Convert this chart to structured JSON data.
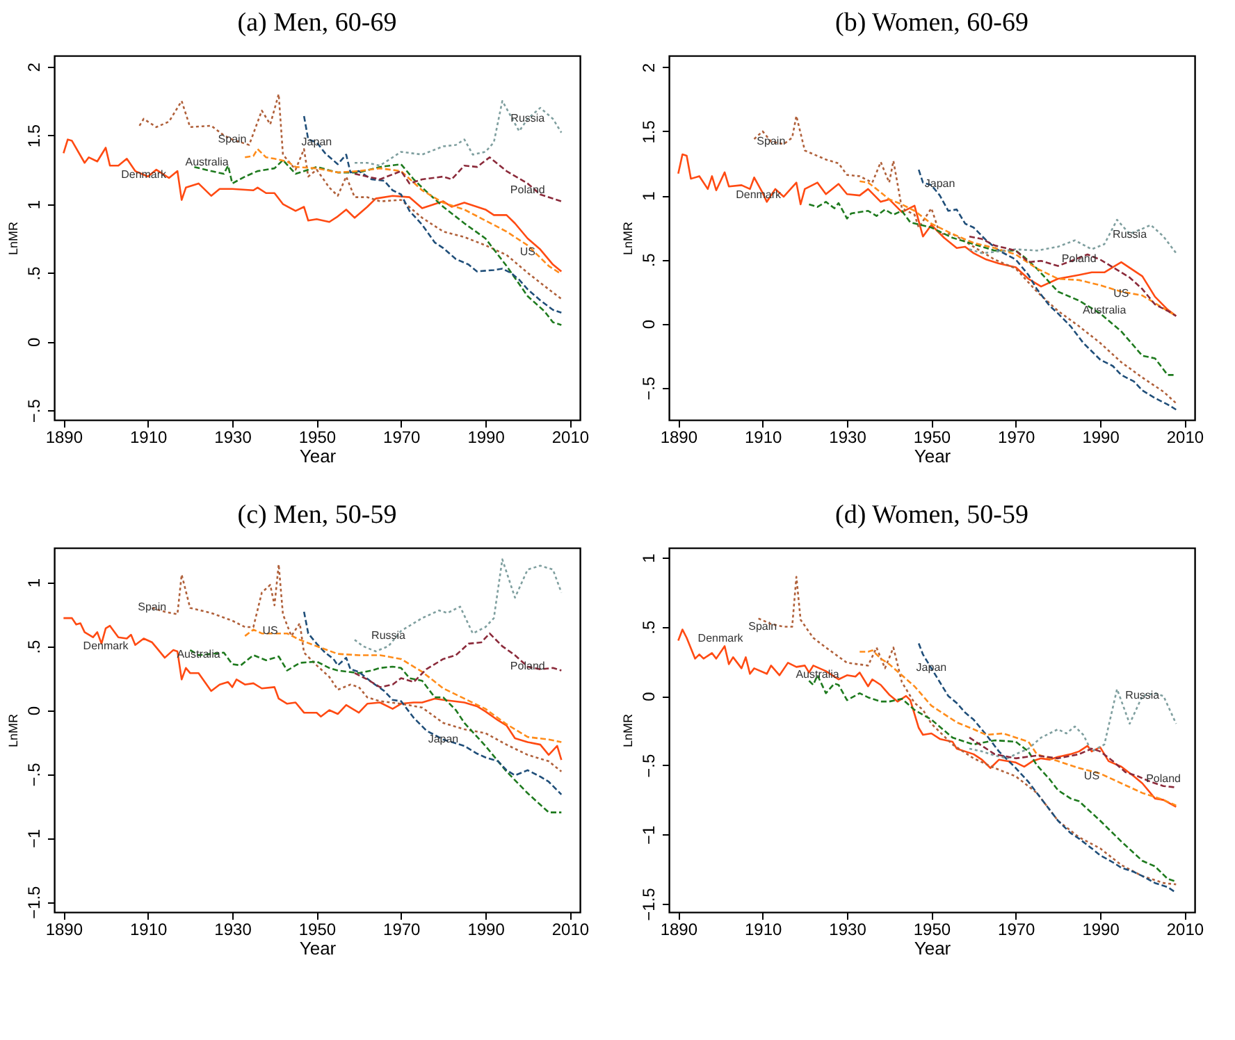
{
  "chart_data": [
    {
      "type": "line",
      "title": "(a) Men, 60-69",
      "xlabel": "Year",
      "ylabel": "LnMR",
      "xlim": [
        1887.8,
        2012.4
      ],
      "ylim": [
        -0.57,
        2.08
      ],
      "xticks": [
        1890,
        1910,
        1930,
        1950,
        1970,
        1990,
        2010
      ],
      "yticks": [
        {
          "value": -0.5,
          "label": "−.5"
        },
        0,
        {
          "value": 0.5,
          "label": ".5"
        },
        1,
        {
          "value": 1.5,
          "label": "1.5"
        },
        2
      ],
      "series": [
        {
          "color": "#ff4a12",
          "line_style": "solid",
          "x": [
            1890,
            1891,
            1892,
            1895,
            1896,
            1898,
            1900,
            1901,
            1903,
            1905,
            1907,
            1910,
            1912,
            1915,
            1917,
            1918,
            1919,
            1922,
            1925,
            1927,
            1930,
            1935,
            1936,
            1938,
            1940,
            1942,
            1945,
            1947,
            1948,
            1950,
            1953,
            1955,
            1957,
            1959,
            1962,
            1964,
            1968,
            1972,
            1975,
            1978,
            1980,
            1982,
            1985,
            1988,
            1990,
            1992,
            1995,
            1997,
            2000,
            2003,
            2006,
            2008
          ],
          "values": [
            1.37,
            1.47,
            1.46,
            1.3,
            1.34,
            1.31,
            1.41,
            1.28,
            1.28,
            1.33,
            1.24,
            1.2,
            1.25,
            1.19,
            1.24,
            1.03,
            1.12,
            1.15,
            1.06,
            1.11,
            1.11,
            1.1,
            1.12,
            1.08,
            1.08,
            1.0,
            0.95,
            0.98,
            0.88,
            0.89,
            0.87,
            0.91,
            0.96,
            0.9,
            0.98,
            1.04,
            1.06,
            1.05,
            0.97,
            1.0,
            1.02,
            0.98,
            1.01,
            0.98,
            0.96,
            0.92,
            0.92,
            0.86,
            0.75,
            0.67,
            0.56,
            0.51
          ]
        },
        {
          "color": "#b0603a",
          "line_style": "dotted",
          "x": [
            1908,
            1909,
            1912,
            1915,
            1918,
            1920,
            1925,
            1928,
            1930,
            1934,
            1937,
            1939,
            1941,
            1942,
            1945,
            1947,
            1948,
            1950,
            1953,
            1955,
            1957,
            1959,
            1962,
            1965,
            1970,
            1975,
            1980,
            1985,
            1990,
            1995,
            2000,
            2005,
            2008
          ],
          "values": [
            1.57,
            1.62,
            1.56,
            1.6,
            1.75,
            1.56,
            1.57,
            1.5,
            1.47,
            1.43,
            1.68,
            1.58,
            1.8,
            1.36,
            1.25,
            1.4,
            1.2,
            1.25,
            1.12,
            1.06,
            1.2,
            1.05,
            1.05,
            1.02,
            1.03,
            0.9,
            0.8,
            0.76,
            0.7,
            0.63,
            0.5,
            0.38,
            0.31
          ]
        },
        {
          "color": "#1e7a1e",
          "line_style": "dashed",
          "x": [
            1921,
            1925,
            1928,
            1929,
            1930,
            1933,
            1936,
            1940,
            1942,
            1945,
            1950,
            1955,
            1960,
            1965,
            1970,
            1973,
            1975,
            1980,
            1985,
            1990,
            1995,
            2000,
            2004,
            2006,
            2008
          ],
          "values": [
            1.27,
            1.24,
            1.22,
            1.28,
            1.15,
            1.2,
            1.24,
            1.26,
            1.32,
            1.22,
            1.27,
            1.23,
            1.23,
            1.27,
            1.29,
            1.18,
            1.12,
            0.98,
            0.86,
            0.75,
            0.55,
            0.33,
            0.22,
            0.14,
            0.12
          ]
        },
        {
          "color": "#1f4e79",
          "line_style": "dashed",
          "x": [
            1947,
            1948,
            1950,
            1952,
            1955,
            1957,
            1958,
            1960,
            1963,
            1966,
            1968,
            1970,
            1972,
            1975,
            1978,
            1980,
            1983,
            1986,
            1988,
            1992,
            1994,
            1996,
            1998,
            2000,
            2003,
            2006,
            2008
          ],
          "values": [
            1.64,
            1.47,
            1.45,
            1.37,
            1.29,
            1.36,
            1.23,
            1.24,
            1.18,
            1.17,
            1.1,
            1.07,
            0.95,
            0.85,
            0.72,
            0.68,
            0.6,
            0.56,
            0.51,
            0.52,
            0.53,
            0.5,
            0.45,
            0.38,
            0.3,
            0.23,
            0.21
          ]
        },
        {
          "color": "#ff8c1a",
          "line_style": "dashed",
          "x": [
            1933,
            1935,
            1936,
            1938,
            1940,
            1943,
            1945,
            1950,
            1955,
            1960,
            1965,
            1970,
            1975,
            1980,
            1985,
            1990,
            1995,
            2000,
            2005,
            2008
          ],
          "values": [
            1.34,
            1.35,
            1.4,
            1.34,
            1.33,
            1.31,
            1.27,
            1.26,
            1.23,
            1.24,
            1.26,
            1.24,
            1.1,
            1.01,
            0.96,
            0.88,
            0.8,
            0.7,
            0.55,
            0.49
          ]
        },
        {
          "color": "#7f9f9f",
          "line_style": "dotted",
          "x": [
            1959,
            1962,
            1965,
            1970,
            1975,
            1980,
            1983,
            1985,
            1987,
            1990,
            1992,
            1994,
            1998,
            2000,
            2003,
            2006,
            2008
          ],
          "values": [
            1.3,
            1.3,
            1.28,
            1.38,
            1.36,
            1.42,
            1.43,
            1.47,
            1.36,
            1.38,
            1.45,
            1.75,
            1.53,
            1.62,
            1.7,
            1.62,
            1.52
          ]
        },
        {
          "color": "#8b2a3a",
          "line_style": "dashed",
          "x": [
            1959,
            1962,
            1965,
            1970,
            1972,
            1975,
            1980,
            1982,
            1985,
            1988,
            1991,
            1995,
            2000,
            2003,
            2008
          ],
          "values": [
            1.22,
            1.2,
            1.18,
            1.24,
            1.15,
            1.18,
            1.2,
            1.18,
            1.28,
            1.27,
            1.34,
            1.24,
            1.15,
            1.07,
            1.02
          ]
        }
      ],
      "annotations": [
        {
          "text": "Spain",
          "x": 1930,
          "y": 1.47
        },
        {
          "text": "Japan",
          "x": 1950,
          "y": 1.45
        },
        {
          "text": "Russia",
          "x": 2000,
          "y": 1.62
        },
        {
          "text": "Australia",
          "x": 1924,
          "y": 1.3
        },
        {
          "text": "Denmark",
          "x": 1909,
          "y": 1.21
        },
        {
          "text": "Poland",
          "x": 2000,
          "y": 1.1
        },
        {
          "text": "US",
          "x": 2000,
          "y": 0.65
        }
      ]
    },
    {
      "type": "line",
      "title": "(b) Women, 60-69",
      "xlabel": "Year",
      "ylabel": "LnMR",
      "xlim": [
        1887.8,
        2012.4
      ],
      "ylim": [
        -0.75,
        2.09
      ],
      "xticks": [
        1890,
        1910,
        1930,
        1950,
        1970,
        1990,
        2010
      ],
      "yticks": [
        {
          "value": -0.5,
          "label": "−.5"
        },
        0,
        {
          "value": 0.5,
          "label": ".5"
        },
        1,
        {
          "value": 1.5,
          "label": "1.5"
        },
        2
      ],
      "series": [
        {
          "color": "#ff4a12",
          "line_style": "solid",
          "x": [
            1890,
            1891,
            1892,
            1893,
            1895,
            1897,
            1898,
            1899,
            1901,
            1902,
            1905,
            1907,
            1908,
            1910,
            1911,
            1913,
            1915,
            1918,
            1919,
            1920,
            1923,
            1925,
            1928,
            1930,
            1933,
            1935,
            1938,
            1940,
            1943,
            1946,
            1948,
            1950,
            1953,
            1956,
            1958,
            1960,
            1963,
            1966,
            1970,
            1973,
            1976,
            1980,
            1985,
            1988,
            1991,
            1993,
            1995,
            2000,
            2003,
            2006,
            2008
          ],
          "values": [
            1.17,
            1.32,
            1.31,
            1.13,
            1.15,
            1.05,
            1.15,
            1.04,
            1.18,
            1.07,
            1.08,
            1.05,
            1.14,
            1.02,
            0.95,
            1.05,
            0.99,
            1.1,
            0.93,
            1.05,
            1.1,
            1.01,
            1.09,
            1.01,
            1.0,
            1.05,
            0.95,
            0.97,
            0.87,
            0.92,
            0.68,
            0.77,
            0.67,
            0.59,
            0.6,
            0.55,
            0.5,
            0.47,
            0.44,
            0.35,
            0.29,
            0.35,
            0.38,
            0.4,
            0.4,
            0.44,
            0.48,
            0.37,
            0.21,
            0.11,
            0.06
          ]
        },
        {
          "color": "#b0603a",
          "line_style": "dotted",
          "x": [
            1908,
            1910,
            1912,
            1915,
            1917,
            1918,
            1920,
            1925,
            1928,
            1930,
            1933,
            1936,
            1938,
            1940,
            1941,
            1943,
            1946,
            1947,
            1948,
            1950,
            1952,
            1955,
            1960,
            1965,
            1970,
            1975,
            1980,
            1985,
            1990,
            1995,
            2000,
            2005,
            2008
          ],
          "values": [
            1.44,
            1.5,
            1.42,
            1.4,
            1.45,
            1.62,
            1.35,
            1.28,
            1.25,
            1.16,
            1.15,
            1.1,
            1.26,
            1.1,
            1.27,
            0.9,
            0.85,
            0.75,
            0.8,
            0.9,
            0.7,
            0.7,
            0.6,
            0.5,
            0.43,
            0.25,
            0.1,
            -0.02,
            -0.15,
            -0.3,
            -0.42,
            -0.53,
            -0.62
          ]
        },
        {
          "color": "#1e7a1e",
          "line_style": "dashed",
          "x": [
            1921,
            1923,
            1925,
            1927,
            1928,
            1930,
            1931,
            1935,
            1937,
            1939,
            1941,
            1943,
            1945,
            1950,
            1955,
            1960,
            1965,
            1970,
            1972,
            1975,
            1980,
            1985,
            1988,
            1990,
            1995,
            2000,
            2003,
            2006,
            2008
          ],
          "values": [
            0.93,
            0.91,
            0.95,
            0.9,
            0.94,
            0.82,
            0.86,
            0.88,
            0.84,
            0.89,
            0.85,
            0.88,
            0.79,
            0.75,
            0.67,
            0.62,
            0.57,
            0.57,
            0.52,
            0.43,
            0.25,
            0.18,
            0.12,
            0.08,
            -0.06,
            -0.25,
            -0.27,
            -0.4,
            -0.4
          ]
        },
        {
          "color": "#1f4e79",
          "line_style": "dashed",
          "x": [
            1947,
            1948,
            1950,
            1952,
            1954,
            1956,
            1958,
            1960,
            1963,
            1966,
            1970,
            1973,
            1975,
            1978,
            1980,
            1983,
            1986,
            1990,
            1993,
            1995,
            1998,
            2000,
            2003,
            2006,
            2008
          ],
          "values": [
            1.2,
            1.1,
            1.08,
            1.0,
            0.88,
            0.89,
            0.78,
            0.75,
            0.65,
            0.57,
            0.5,
            0.38,
            0.27,
            0.14,
            0.08,
            -0.02,
            -0.15,
            -0.28,
            -0.33,
            -0.4,
            -0.45,
            -0.52,
            -0.58,
            -0.63,
            -0.67
          ]
        },
        {
          "color": "#ff8c1a",
          "line_style": "dashed",
          "x": [
            1933,
            1935,
            1937,
            1940,
            1943,
            1946,
            1950,
            1955,
            1960,
            1965,
            1970,
            1975,
            1980,
            1985,
            1990,
            1995,
            2000,
            2005,
            2008
          ],
          "values": [
            1.11,
            1.1,
            1.05,
            0.97,
            0.93,
            0.88,
            0.78,
            0.7,
            0.63,
            0.59,
            0.54,
            0.43,
            0.35,
            0.34,
            0.3,
            0.25,
            0.22,
            0.12,
            0.06
          ]
        },
        {
          "color": "#7f9f9f",
          "line_style": "dotted",
          "x": [
            1959,
            1962,
            1965,
            1970,
            1975,
            1980,
            1984,
            1988,
            1991,
            1994,
            1997,
            2000,
            2002,
            2005,
            2008
          ],
          "values": [
            0.58,
            0.55,
            0.56,
            0.58,
            0.57,
            0.6,
            0.65,
            0.58,
            0.62,
            0.81,
            0.7,
            0.74,
            0.77,
            0.68,
            0.55
          ]
        },
        {
          "color": "#8b2a3a",
          "line_style": "dashed",
          "x": [
            1959,
            1962,
            1965,
            1970,
            1973,
            1976,
            1980,
            1984,
            1987,
            1990,
            1993,
            1997,
            2000,
            2003,
            2006,
            2008
          ],
          "values": [
            0.68,
            0.66,
            0.61,
            0.57,
            0.48,
            0.49,
            0.45,
            0.5,
            0.54,
            0.5,
            0.44,
            0.36,
            0.27,
            0.15,
            0.1,
            0.06
          ]
        }
      ],
      "annotations": [
        {
          "text": "Spain",
          "x": 1912,
          "y": 1.42
        },
        {
          "text": "Japan",
          "x": 1952,
          "y": 1.09
        },
        {
          "text": "Denmark",
          "x": 1909,
          "y": 1.0
        },
        {
          "text": "Russia",
          "x": 1997,
          "y": 0.69
        },
        {
          "text": "Poland",
          "x": 1985,
          "y": 0.5
        },
        {
          "text": "US",
          "x": 1995,
          "y": 0.23
        },
        {
          "text": "Australia",
          "x": 1991,
          "y": 0.1
        }
      ]
    },
    {
      "type": "line",
      "title": "(c) Men, 50-59",
      "xlabel": "Year",
      "ylabel": "LnMR",
      "xlim": [
        1887.8,
        2012.4
      ],
      "ylim": [
        -1.58,
        1.27
      ],
      "xticks": [
        1890,
        1910,
        1930,
        1950,
        1970,
        1990,
        2010
      ],
      "yticks": [
        {
          "value": -1.5,
          "label": "−1.5"
        },
        {
          "value": -1,
          "label": "−1"
        },
        {
          "value": -0.5,
          "label": "−.5"
        },
        0,
        {
          "value": 0.5,
          "label": ".5"
        },
        1
      ],
      "series": [
        {
          "color": "#ff4a12",
          "line_style": "solid",
          "x": [
            1890,
            1892,
            1893,
            1894,
            1895,
            1897,
            1898,
            1899,
            1900,
            1901,
            1903,
            1905,
            1906,
            1907,
            1909,
            1911,
            1912,
            1914,
            1916,
            1917,
            1918,
            1919,
            1920,
            1922,
            1925,
            1927,
            1929,
            1930,
            1931,
            1933,
            1935,
            1937,
            1940,
            1941,
            1943,
            1945,
            1947,
            1950,
            1951,
            1953,
            1955,
            1957,
            1960,
            1962,
            1965,
            1968,
            1970,
            1973,
            1975,
            1978,
            1980,
            1985,
            1988,
            1990,
            1993,
            1995,
            1997,
            2000,
            2003,
            2005,
            2007,
            2008
          ],
          "values": [
            0.72,
            0.72,
            0.67,
            0.68,
            0.61,
            0.57,
            0.61,
            0.52,
            0.64,
            0.66,
            0.57,
            0.56,
            0.59,
            0.51,
            0.56,
            0.53,
            0.49,
            0.41,
            0.47,
            0.46,
            0.24,
            0.33,
            0.29,
            0.29,
            0.15,
            0.2,
            0.22,
            0.18,
            0.24,
            0.2,
            0.21,
            0.17,
            0.18,
            0.09,
            0.05,
            0.06,
            -0.02,
            -0.02,
            -0.05,
            0.0,
            -0.03,
            0.04,
            -0.02,
            0.05,
            0.06,
            0.01,
            0.05,
            0.06,
            0.06,
            0.09,
            0.08,
            0.06,
            0.03,
            -0.01,
            -0.08,
            -0.12,
            -0.22,
            -0.25,
            -0.27,
            -0.35,
            -0.28,
            -0.39
          ]
        },
        {
          "color": "#b0603a",
          "line_style": "dotted",
          "x": [
            1911,
            1914,
            1917,
            1918,
            1920,
            1925,
            1930,
            1933,
            1935,
            1937,
            1939,
            1940,
            1941,
            1942,
            1944,
            1946,
            1947,
            1950,
            1953,
            1955,
            1958,
            1960,
            1962,
            1965,
            1970,
            1975,
            1980,
            1985,
            1990,
            1995,
            2000,
            2005,
            2008
          ],
          "values": [
            0.8,
            0.77,
            0.75,
            1.06,
            0.8,
            0.76,
            0.7,
            0.65,
            0.65,
            0.92,
            0.98,
            0.82,
            1.14,
            0.75,
            0.58,
            0.68,
            0.45,
            0.35,
            0.26,
            0.16,
            0.2,
            0.18,
            0.1,
            0.07,
            0.05,
            0.02,
            -0.1,
            -0.15,
            -0.18,
            -0.27,
            -0.35,
            -0.4,
            -0.48
          ]
        },
        {
          "color": "#1e7a1e",
          "line_style": "dashed",
          "x": [
            1920,
            1922,
            1925,
            1928,
            1930,
            1932,
            1935,
            1938,
            1941,
            1943,
            1946,
            1950,
            1953,
            1955,
            1960,
            1963,
            1965,
            1968,
            1970,
            1972,
            1975,
            1978,
            1980,
            1983,
            1985,
            1990,
            1995,
            2000,
            2005,
            2008
          ],
          "values": [
            0.47,
            0.43,
            0.44,
            0.45,
            0.36,
            0.35,
            0.43,
            0.39,
            0.42,
            0.31,
            0.37,
            0.38,
            0.33,
            0.31,
            0.29,
            0.31,
            0.33,
            0.34,
            0.33,
            0.25,
            0.23,
            0.1,
            0.1,
            0.0,
            -0.1,
            -0.28,
            -0.48,
            -0.65,
            -0.8,
            -0.8
          ]
        },
        {
          "color": "#1f4e79",
          "line_style": "dashed",
          "x": [
            1947,
            1948,
            1950,
            1952,
            1954,
            1955,
            1957,
            1958,
            1960,
            1963,
            1966,
            1968,
            1970,
            1973,
            1976,
            1980,
            1983,
            1985,
            1988,
            1990,
            1993,
            1995,
            1997,
            2000,
            2003,
            2005,
            2008
          ],
          "values": [
            0.77,
            0.6,
            0.52,
            0.45,
            0.4,
            0.35,
            0.41,
            0.32,
            0.3,
            0.22,
            0.15,
            0.08,
            0.07,
            -0.06,
            -0.16,
            -0.23,
            -0.26,
            -0.28,
            -0.34,
            -0.37,
            -0.4,
            -0.47,
            -0.51,
            -0.47,
            -0.52,
            -0.56,
            -0.66
          ]
        },
        {
          "color": "#ff8c1a",
          "line_style": "dashed",
          "x": [
            1933,
            1935,
            1937,
            1940,
            1943,
            1946,
            1950,
            1955,
            1960,
            1965,
            1970,
            1975,
            1980,
            1985,
            1990,
            1995,
            2000,
            2005,
            2008
          ],
          "values": [
            0.58,
            0.63,
            0.6,
            0.6,
            0.6,
            0.55,
            0.5,
            0.44,
            0.43,
            0.43,
            0.4,
            0.3,
            0.17,
            0.09,
            0.01,
            -0.11,
            -0.21,
            -0.23,
            -0.25
          ]
        },
        {
          "color": "#7f9f9f",
          "line_style": "dotted",
          "x": [
            1959,
            1961,
            1964,
            1967,
            1970,
            1975,
            1979,
            1981,
            1984,
            1987,
            1990,
            1992,
            1994,
            1997,
            2000,
            2003,
            2006,
            2008
          ],
          "values": [
            0.55,
            0.5,
            0.46,
            0.5,
            0.62,
            0.72,
            0.78,
            0.76,
            0.81,
            0.6,
            0.65,
            0.72,
            1.18,
            0.88,
            1.1,
            1.13,
            1.1,
            0.92
          ]
        },
        {
          "color": "#8b2a3a",
          "line_style": "dashed",
          "x": [
            1959,
            1962,
            1965,
            1968,
            1970,
            1973,
            1976,
            1980,
            1983,
            1986,
            1989,
            1991,
            1994,
            1997,
            2000,
            2003,
            2006,
            2008
          ],
          "values": [
            0.29,
            0.24,
            0.18,
            0.2,
            0.25,
            0.22,
            0.32,
            0.4,
            0.43,
            0.52,
            0.53,
            0.6,
            0.5,
            0.43,
            0.34,
            0.32,
            0.33,
            0.31
          ]
        }
      ],
      "annotations": [
        {
          "text": "Spain",
          "x": 1911,
          "y": 0.8
        },
        {
          "text": "US",
          "x": 1939,
          "y": 0.62
        },
        {
          "text": "Russia",
          "x": 1967,
          "y": 0.58
        },
        {
          "text": "Denmark",
          "x": 1900,
          "y": 0.5
        },
        {
          "text": "Australia",
          "x": 1922,
          "y": 0.43
        },
        {
          "text": "Poland",
          "x": 2000,
          "y": 0.34
        },
        {
          "text": "Japan",
          "x": 1980,
          "y": -0.23
        }
      ]
    },
    {
      "type": "line",
      "title": "(d) Women, 50-59",
      "xlabel": "Year",
      "ylabel": "LnMR",
      "xlim": [
        1887.8,
        2012.4
      ],
      "ylim": [
        -1.56,
        1.07
      ],
      "xticks": [
        1890,
        1910,
        1930,
        1950,
        1970,
        1990,
        2010
      ],
      "yticks": [
        {
          "value": -1.5,
          "label": "−1.5"
        },
        {
          "value": -1,
          "label": "−1"
        },
        {
          "value": -0.5,
          "label": "−.5"
        },
        0,
        {
          "value": 0.5,
          "label": ".5"
        },
        1
      ],
      "series": [
        {
          "color": "#ff4a12",
          "line_style": "solid",
          "x": [
            1890,
            1891,
            1892,
            1894,
            1895,
            1896,
            1898,
            1899,
            1901,
            1902,
            1903,
            1905,
            1906,
            1907,
            1908,
            1911,
            1912,
            1914,
            1916,
            1918,
            1920,
            1921,
            1922,
            1925,
            1928,
            1930,
            1932,
            1933,
            1935,
            1936,
            1938,
            1940,
            1942,
            1944,
            1945,
            1947,
            1948,
            1950,
            1952,
            1955,
            1956,
            1958,
            1960,
            1962,
            1964,
            1966,
            1970,
            1972,
            1974,
            1976,
            1978,
            1980,
            1983,
            1985,
            1987,
            1988,
            1990,
            1992,
            1995,
            1998,
            2000,
            2003,
            2005,
            2008
          ],
          "values": [
            0.4,
            0.48,
            0.42,
            0.27,
            0.3,
            0.27,
            0.31,
            0.27,
            0.36,
            0.23,
            0.28,
            0.2,
            0.28,
            0.16,
            0.2,
            0.16,
            0.22,
            0.15,
            0.24,
            0.21,
            0.22,
            0.17,
            0.22,
            0.18,
            0.12,
            0.15,
            0.14,
            0.17,
            0.07,
            0.12,
            0.08,
            0.01,
            -0.04,
            0.0,
            -0.03,
            -0.23,
            -0.28,
            -0.27,
            -0.31,
            -0.33,
            -0.38,
            -0.4,
            -0.42,
            -0.46,
            -0.52,
            -0.46,
            -0.48,
            -0.51,
            -0.47,
            -0.45,
            -0.46,
            -0.44,
            -0.42,
            -0.4,
            -0.36,
            -0.4,
            -0.37,
            -0.47,
            -0.51,
            -0.58,
            -0.63,
            -0.74,
            -0.75,
            -0.8
          ]
        },
        {
          "color": "#b0603a",
          "line_style": "dotted",
          "x": [
            1909,
            1912,
            1915,
            1917,
            1918,
            1919,
            1922,
            1925,
            1930,
            1935,
            1937,
            1939,
            1941,
            1943,
            1946,
            1948,
            1950,
            1955,
            1960,
            1965,
            1970,
            1975,
            1980,
            1985,
            1990,
            1995,
            2000,
            2005,
            2008
          ],
          "values": [
            0.56,
            0.52,
            0.5,
            0.5,
            0.86,
            0.55,
            0.42,
            0.35,
            0.24,
            0.22,
            0.35,
            0.2,
            0.35,
            0.1,
            -0.05,
            -0.1,
            -0.2,
            -0.35,
            -0.45,
            -0.52,
            -0.58,
            -0.7,
            -0.9,
            -1.02,
            -1.1,
            -1.22,
            -1.3,
            -1.35,
            -1.36
          ]
        },
        {
          "color": "#1e7a1e",
          "line_style": "dashed",
          "x": [
            1921,
            1922,
            1923,
            1925,
            1927,
            1928,
            1930,
            1933,
            1935,
            1938,
            1940,
            1943,
            1946,
            1950,
            1955,
            1960,
            1965,
            1970,
            1973,
            1975,
            1978,
            1980,
            1983,
            1985,
            1990,
            1995,
            2000,
            2003,
            2006,
            2008
          ],
          "values": [
            0.11,
            0.08,
            0.15,
            0.02,
            0.09,
            0.08,
            -0.03,
            0.02,
            -0.01,
            -0.04,
            -0.04,
            -0.02,
            -0.1,
            -0.17,
            -0.3,
            -0.35,
            -0.32,
            -0.33,
            -0.4,
            -0.5,
            -0.6,
            -0.68,
            -0.74,
            -0.76,
            -0.9,
            -1.05,
            -1.19,
            -1.23,
            -1.32,
            -1.34
          ]
        },
        {
          "color": "#1f4e79",
          "line_style": "dashed",
          "x": [
            1947,
            1948,
            1950,
            1952,
            1954,
            1956,
            1958,
            1960,
            1963,
            1966,
            1970,
            1973,
            1975,
            1978,
            1980,
            1983,
            1985,
            1988,
            1990,
            1993,
            1995,
            1998,
            2000,
            2003,
            2006,
            2008
          ],
          "values": [
            0.38,
            0.3,
            0.2,
            0.1,
            0.0,
            -0.05,
            -0.12,
            -0.17,
            -0.28,
            -0.4,
            -0.52,
            -0.62,
            -0.7,
            -0.82,
            -0.9,
            -0.99,
            -1.03,
            -1.1,
            -1.15,
            -1.2,
            -1.24,
            -1.27,
            -1.3,
            -1.35,
            -1.38,
            -1.42
          ]
        },
        {
          "color": "#ff8c1a",
          "line_style": "dashed",
          "x": [
            1933,
            1935,
            1936,
            1938,
            1940,
            1943,
            1946,
            1950,
            1953,
            1956,
            1960,
            1963,
            1967,
            1970,
            1973,
            1975,
            1980,
            1985,
            1990,
            1995,
            2000,
            2005,
            2008
          ],
          "values": [
            0.32,
            0.32,
            0.33,
            0.27,
            0.23,
            0.15,
            0.07,
            -0.07,
            -0.13,
            -0.19,
            -0.24,
            -0.28,
            -0.27,
            -0.3,
            -0.33,
            -0.42,
            -0.47,
            -0.52,
            -0.56,
            -0.63,
            -0.7,
            -0.75,
            -0.79
          ]
        },
        {
          "color": "#7f9f9f",
          "line_style": "dotted",
          "x": [
            1959,
            1962,
            1965,
            1968,
            1970,
            1973,
            1976,
            1980,
            1982,
            1984,
            1986,
            1988,
            1991,
            1994,
            1997,
            2000,
            2003,
            2005,
            2008
          ],
          "values": [
            -0.38,
            -0.4,
            -0.43,
            -0.45,
            -0.42,
            -0.38,
            -0.3,
            -0.24,
            -0.27,
            -0.22,
            -0.28,
            -0.4,
            -0.35,
            0.05,
            -0.2,
            0.0,
            0.02,
            0.0,
            -0.2
          ]
        },
        {
          "color": "#8b2a3a",
          "line_style": "dashed",
          "x": [
            1959,
            1962,
            1965,
            1970,
            1975,
            1980,
            1985,
            1988,
            1990,
            1993,
            1996,
            1999,
            2002,
            2005,
            2008
          ],
          "values": [
            -0.3,
            -0.36,
            -0.42,
            -0.45,
            -0.43,
            -0.45,
            -0.42,
            -0.38,
            -0.4,
            -0.47,
            -0.55,
            -0.58,
            -0.62,
            -0.65,
            -0.66
          ]
        }
      ],
      "annotations": [
        {
          "text": "Spain",
          "x": 1910,
          "y": 0.5
        },
        {
          "text": "Denmark",
          "x": 1900,
          "y": 0.41
        },
        {
          "text": "Japan",
          "x": 1950,
          "y": 0.2
        },
        {
          "text": "Australia",
          "x": 1923,
          "y": 0.15
        },
        {
          "text": "Russia",
          "x": 2000,
          "y": 0.0
        },
        {
          "text": "US",
          "x": 1988,
          "y": -0.58
        },
        {
          "text": "Poland",
          "x": 2005,
          "y": -0.6
        }
      ]
    }
  ]
}
